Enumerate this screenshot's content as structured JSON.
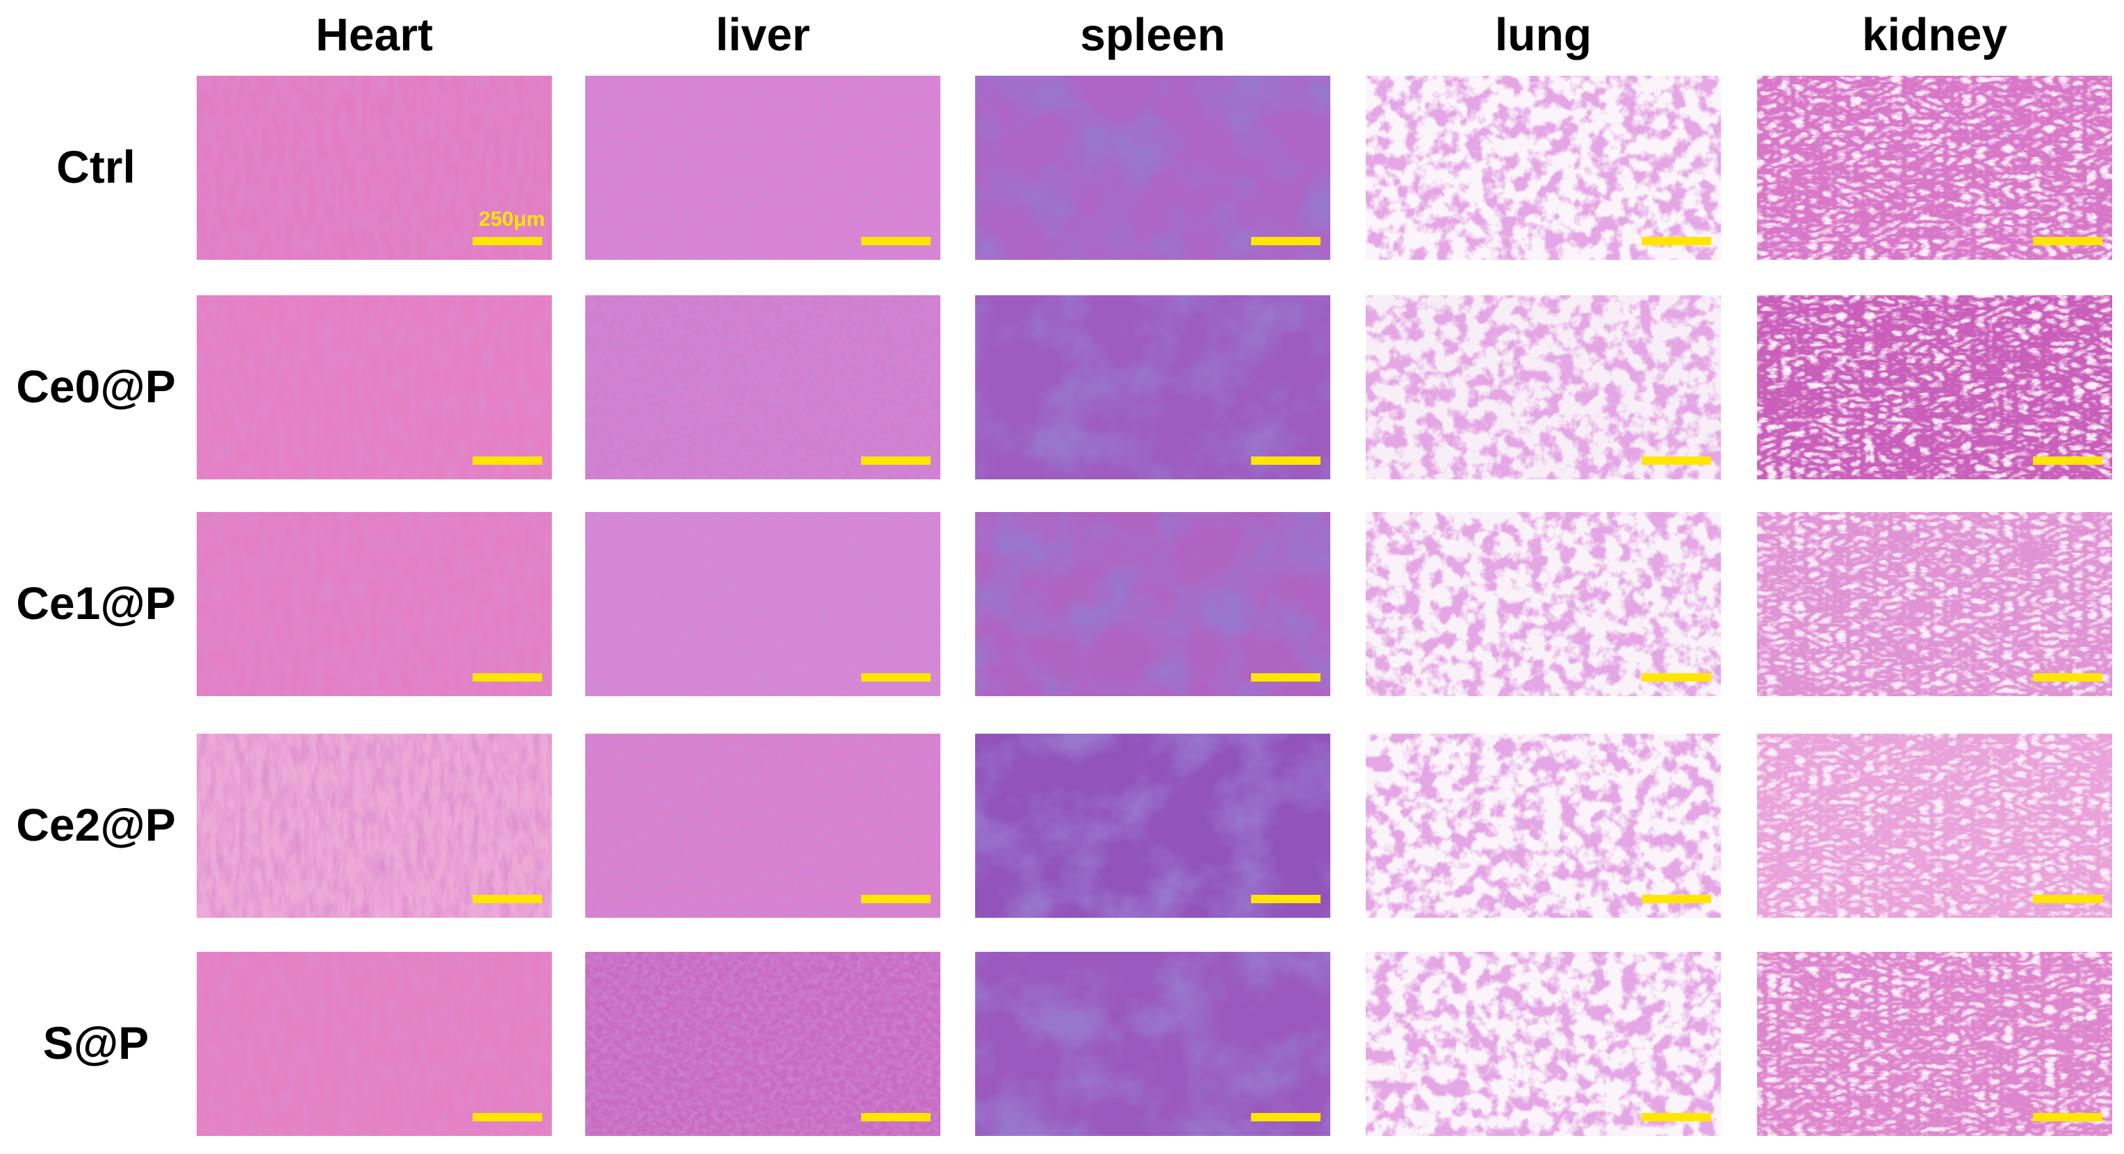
{
  "columns": [
    "Heart",
    "liver",
    "spleen",
    "lung",
    "kidney"
  ],
  "rows": [
    "Ctrl",
    "Ce0@P",
    "Ce1@P",
    "Ce2@P",
    "S@P"
  ],
  "scale_bar_label": "250μm"
}
